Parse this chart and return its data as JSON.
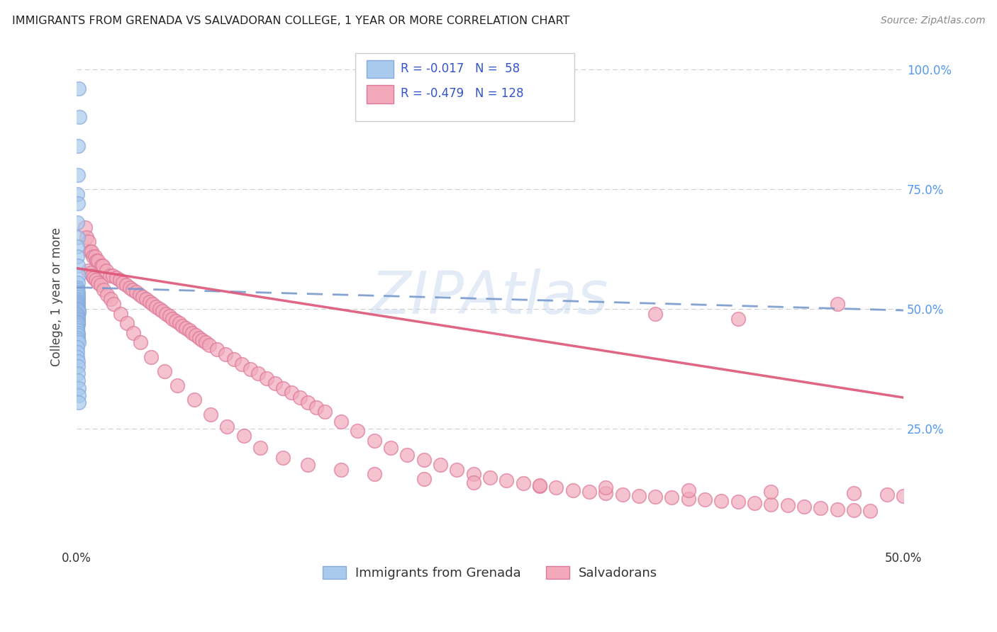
{
  "title": "IMMIGRANTS FROM GRENADA VS SALVADORAN COLLEGE, 1 YEAR OR MORE CORRELATION CHART",
  "source": "Source: ZipAtlas.com",
  "ylabel": "College, 1 year or more",
  "xlim": [
    0.0,
    0.5
  ],
  "ylim": [
    0.0,
    1.05
  ],
  "yticks_right": [
    0.25,
    0.5,
    0.75,
    1.0
  ],
  "yticklabels_right": [
    "25.0%",
    "50.0%",
    "75.0%",
    "100.0%"
  ],
  "color_blue": "#A8CAED",
  "color_blue_edge": "#88AADD",
  "color_pink": "#F2AABB",
  "color_pink_edge": "#DD7799",
  "color_blue_line": "#7799CC",
  "color_pink_line": "#DD5577",
  "grid_color": "#CCCCCC",
  "background": "#FFFFFF",
  "watermark": "ZIPAtlas",
  "legend_labels": [
    "Immigrants from Grenada",
    "Salvadorans"
  ],
  "blue_line_x": [
    0.0,
    0.5
  ],
  "blue_line_y": [
    0.545,
    0.497
  ],
  "pink_line_x": [
    0.0,
    0.5
  ],
  "pink_line_y": [
    0.585,
    0.315
  ],
  "blue_x": [
    0.0015,
    0.0018,
    0.0008,
    0.001,
    0.0005,
    0.0007,
    0.0006,
    0.0009,
    0.0004,
    0.0006,
    0.0008,
    0.0012,
    0.001,
    0.0005,
    0.0006,
    0.0007,
    0.0008,
    0.0009,
    0.001,
    0.0006,
    0.0007,
    0.0008,
    0.0005,
    0.0006,
    0.0007,
    0.0008,
    0.0009,
    0.001,
    0.0011,
    0.0012,
    0.0005,
    0.0006,
    0.0007,
    0.0008,
    0.0009,
    0.001,
    0.0006,
    0.0007,
    0.0008,
    0.0009,
    0.0004,
    0.0005,
    0.0006,
    0.0007,
    0.0008,
    0.0009,
    0.001,
    0.0011,
    0.0004,
    0.0005,
    0.0006,
    0.0007,
    0.0008,
    0.0009,
    0.001,
    0.0011,
    0.0012,
    0.0013
  ],
  "blue_y": [
    0.96,
    0.9,
    0.84,
    0.78,
    0.74,
    0.72,
    0.68,
    0.65,
    0.63,
    0.61,
    0.59,
    0.57,
    0.555,
    0.545,
    0.54,
    0.535,
    0.53,
    0.525,
    0.52,
    0.518,
    0.515,
    0.512,
    0.51,
    0.508,
    0.505,
    0.502,
    0.5,
    0.498,
    0.495,
    0.492,
    0.49,
    0.488,
    0.485,
    0.482,
    0.48,
    0.478,
    0.475,
    0.472,
    0.47,
    0.468,
    0.465,
    0.46,
    0.455,
    0.45,
    0.445,
    0.44,
    0.435,
    0.43,
    0.42,
    0.41,
    0.4,
    0.39,
    0.38,
    0.365,
    0.35,
    0.335,
    0.32,
    0.305
  ],
  "pink_x": [
    0.005,
    0.006,
    0.0075,
    0.008,
    0.009,
    0.01,
    0.011,
    0.012,
    0.013,
    0.015,
    0.016,
    0.018,
    0.02,
    0.022,
    0.024,
    0.026,
    0.028,
    0.03,
    0.032,
    0.034,
    0.036,
    0.038,
    0.04,
    0.042,
    0.044,
    0.046,
    0.048,
    0.05,
    0.052,
    0.054,
    0.056,
    0.058,
    0.06,
    0.062,
    0.064,
    0.066,
    0.068,
    0.07,
    0.072,
    0.074,
    0.076,
    0.078,
    0.08,
    0.085,
    0.09,
    0.095,
    0.1,
    0.105,
    0.11,
    0.115,
    0.12,
    0.125,
    0.13,
    0.135,
    0.14,
    0.145,
    0.15,
    0.16,
    0.17,
    0.18,
    0.19,
    0.2,
    0.21,
    0.22,
    0.23,
    0.24,
    0.25,
    0.26,
    0.27,
    0.28,
    0.29,
    0.3,
    0.31,
    0.32,
    0.33,
    0.34,
    0.35,
    0.36,
    0.37,
    0.38,
    0.39,
    0.4,
    0.41,
    0.42,
    0.43,
    0.44,
    0.45,
    0.46,
    0.47,
    0.48,
    0.007,
    0.0085,
    0.0095,
    0.0105,
    0.0115,
    0.013,
    0.0145,
    0.0165,
    0.0185,
    0.0205,
    0.0225,
    0.0265,
    0.0305,
    0.0345,
    0.0385,
    0.045,
    0.053,
    0.061,
    0.071,
    0.081,
    0.091,
    0.101,
    0.111,
    0.125,
    0.14,
    0.16,
    0.18,
    0.21,
    0.24,
    0.28,
    0.32,
    0.37,
    0.42,
    0.47,
    0.49,
    0.5,
    0.35,
    0.46,
    0.4
  ],
  "pink_y": [
    0.67,
    0.65,
    0.64,
    0.62,
    0.62,
    0.61,
    0.61,
    0.6,
    0.6,
    0.59,
    0.59,
    0.58,
    0.57,
    0.57,
    0.565,
    0.56,
    0.555,
    0.55,
    0.545,
    0.54,
    0.535,
    0.53,
    0.525,
    0.52,
    0.515,
    0.51,
    0.505,
    0.5,
    0.495,
    0.49,
    0.485,
    0.48,
    0.475,
    0.47,
    0.465,
    0.46,
    0.455,
    0.45,
    0.445,
    0.44,
    0.435,
    0.43,
    0.425,
    0.415,
    0.405,
    0.395,
    0.385,
    0.375,
    0.365,
    0.355,
    0.345,
    0.335,
    0.325,
    0.315,
    0.305,
    0.295,
    0.285,
    0.265,
    0.245,
    0.225,
    0.21,
    0.195,
    0.185,
    0.175,
    0.165,
    0.155,
    0.148,
    0.142,
    0.136,
    0.13,
    0.128,
    0.122,
    0.118,
    0.115,
    0.112,
    0.11,
    0.108,
    0.106,
    0.104,
    0.102,
    0.1,
    0.098,
    0.095,
    0.092,
    0.09,
    0.088,
    0.085,
    0.082,
    0.08,
    0.078,
    0.58,
    0.575,
    0.57,
    0.565,
    0.56,
    0.555,
    0.55,
    0.54,
    0.53,
    0.52,
    0.51,
    0.49,
    0.47,
    0.45,
    0.43,
    0.4,
    0.37,
    0.34,
    0.31,
    0.28,
    0.255,
    0.235,
    0.21,
    0.19,
    0.175,
    0.165,
    0.155,
    0.145,
    0.138,
    0.132,
    0.128,
    0.122,
    0.118,
    0.115,
    0.112,
    0.11,
    0.49,
    0.51,
    0.48
  ]
}
